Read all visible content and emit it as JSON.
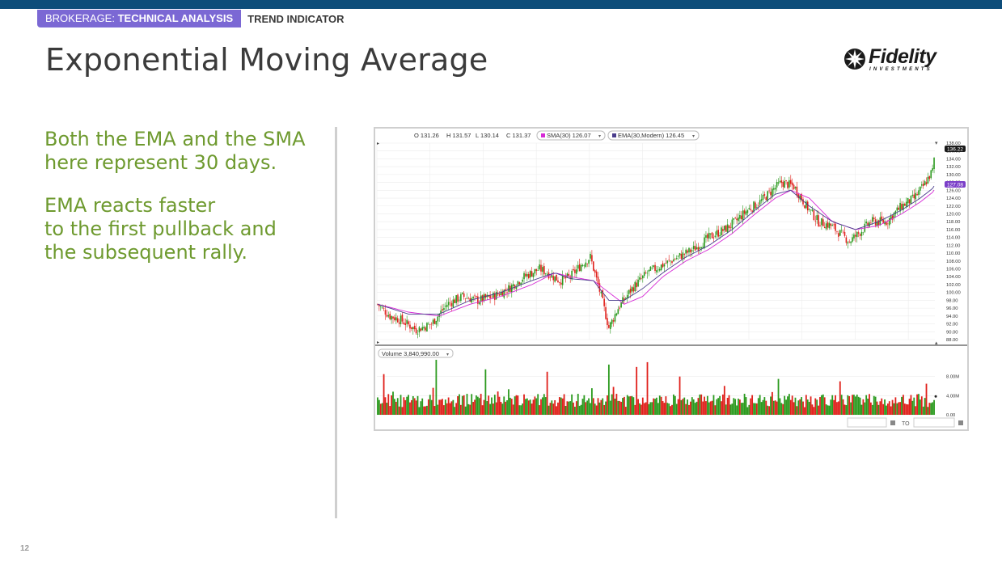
{
  "header": {
    "category": "BROKERAGE:",
    "category_bold": "TECHNICAL ANALYSIS",
    "subcategory": "TREND INDICATOR"
  },
  "slide": {
    "title": "Exponential Moving Average",
    "paragraph1": "Both the EMA and the SMA here represent 30 days.",
    "paragraph2_line1": "EMA reacts faster",
    "paragraph2_line2": "to the first pullback and",
    "paragraph2_line3": "the subsequent rally.",
    "page_number": "12"
  },
  "logo": {
    "name": "Fidelity",
    "tagline": "INVESTMENTS",
    "icon": "fidelity-globe-icon"
  },
  "colors": {
    "topbar": "#0d4d7a",
    "pill": "#7b68d4",
    "body_text": "#6e9a2f",
    "sma": "#d62ad6",
    "ema": "#4a3d8c",
    "up": "#2b9a1e",
    "down": "#e0201b"
  },
  "chart_data": {
    "type": "candlestick",
    "ohlc_label": {
      "o": "O 131.26",
      "h": "H 131.57",
      "l": "L 130.14",
      "c": "C 131.37"
    },
    "sma_label": "SMA(30) 126.07",
    "ema_label": "EMA(30,Modern) 126.45",
    "price_axis": {
      "min": 88,
      "max": 138,
      "ticks": [
        "138.00",
        "136.00",
        "134.00",
        "132.00",
        "130.00",
        "128.00",
        "126.00",
        "124.00",
        "122.00",
        "120.00",
        "118.00",
        "116.00",
        "114.00",
        "112.00",
        "110.00",
        "108.00",
        "106.00",
        "104.00",
        "102.00",
        "100.00",
        "98.00",
        "96.00",
        "94.00",
        "92.00",
        "90.00",
        "88.00"
      ],
      "last_price_tag": "136.22",
      "sma_tag": "126.07",
      "ema_tag": "127.08"
    },
    "price_anchors": [
      [
        0,
        97
      ],
      [
        8,
        94
      ],
      [
        15,
        93
      ],
      [
        25,
        90.5
      ],
      [
        35,
        92
      ],
      [
        45,
        97
      ],
      [
        55,
        99
      ],
      [
        65,
        98
      ],
      [
        75,
        99
      ],
      [
        85,
        101
      ],
      [
        95,
        104
      ],
      [
        105,
        106
      ],
      [
        110,
        105
      ],
      [
        118,
        103
      ],
      [
        125,
        104
      ],
      [
        132,
        107
      ],
      [
        138,
        109
      ],
      [
        145,
        99
      ],
      [
        150,
        91
      ],
      [
        156,
        96
      ],
      [
        165,
        101
      ],
      [
        175,
        105
      ],
      [
        185,
        107
      ],
      [
        195,
        109
      ],
      [
        205,
        111
      ],
      [
        215,
        114
      ],
      [
        225,
        116
      ],
      [
        232,
        118
      ],
      [
        240,
        121
      ],
      [
        248,
        123
      ],
      [
        256,
        126
      ],
      [
        262,
        128
      ],
      [
        270,
        127
      ],
      [
        278,
        122
      ],
      [
        286,
        118
      ],
      [
        294,
        117
      ],
      [
        300,
        115
      ],
      [
        306,
        113
      ],
      [
        312,
        115
      ],
      [
        320,
        118
      ],
      [
        330,
        118
      ],
      [
        340,
        122
      ],
      [
        348,
        124
      ],
      [
        354,
        127
      ],
      [
        360,
        131
      ],
      [
        362,
        136.2
      ]
    ],
    "sma_anchors": [
      [
        0,
        97
      ],
      [
        20,
        95
      ],
      [
        40,
        94
      ],
      [
        60,
        97
      ],
      [
        80,
        99
      ],
      [
        100,
        102
      ],
      [
        115,
        105
      ],
      [
        125,
        104
      ],
      [
        140,
        103
      ],
      [
        150,
        100
      ],
      [
        160,
        97
      ],
      [
        172,
        99
      ],
      [
        185,
        104
      ],
      [
        200,
        108
      ],
      [
        215,
        111
      ],
      [
        230,
        115
      ],
      [
        245,
        120
      ],
      [
        258,
        124
      ],
      [
        268,
        126
      ],
      [
        280,
        124
      ],
      [
        295,
        118
      ],
      [
        310,
        116
      ],
      [
        325,
        117
      ],
      [
        340,
        120
      ],
      [
        352,
        123
      ],
      [
        362,
        126.07
      ]
    ],
    "ema_anchors": [
      [
        0,
        97
      ],
      [
        20,
        94.5
      ],
      [
        40,
        94.5
      ],
      [
        60,
        98
      ],
      [
        80,
        100
      ],
      [
        100,
        103
      ],
      [
        115,
        105
      ],
      [
        125,
        103.5
      ],
      [
        140,
        103
      ],
      [
        150,
        98
      ],
      [
        160,
        98
      ],
      [
        172,
        101
      ],
      [
        185,
        105
      ],
      [
        200,
        109
      ],
      [
        215,
        112
      ],
      [
        230,
        116
      ],
      [
        245,
        121
      ],
      [
        258,
        125
      ],
      [
        268,
        126
      ],
      [
        280,
        122
      ],
      [
        295,
        118
      ],
      [
        310,
        116
      ],
      [
        325,
        118
      ],
      [
        340,
        121
      ],
      [
        352,
        124
      ],
      [
        362,
        127.08
      ]
    ],
    "volume": {
      "label": "Volume 3,840,990.00",
      "ticks": [
        "8.00M",
        "4.00M",
        "0.00"
      ],
      "max": 12,
      "spikes": [
        [
          4,
          8.5
        ],
        [
          38,
          11.5
        ],
        [
          70,
          9.5
        ],
        [
          110,
          9
        ],
        [
          150,
          10.5
        ],
        [
          168,
          10
        ],
        [
          175,
          11
        ],
        [
          196,
          8
        ],
        [
          260,
          7.5
        ],
        [
          300,
          7
        ],
        [
          356,
          6.5
        ]
      ]
    },
    "range_label": "TO",
    "grid": true
  }
}
